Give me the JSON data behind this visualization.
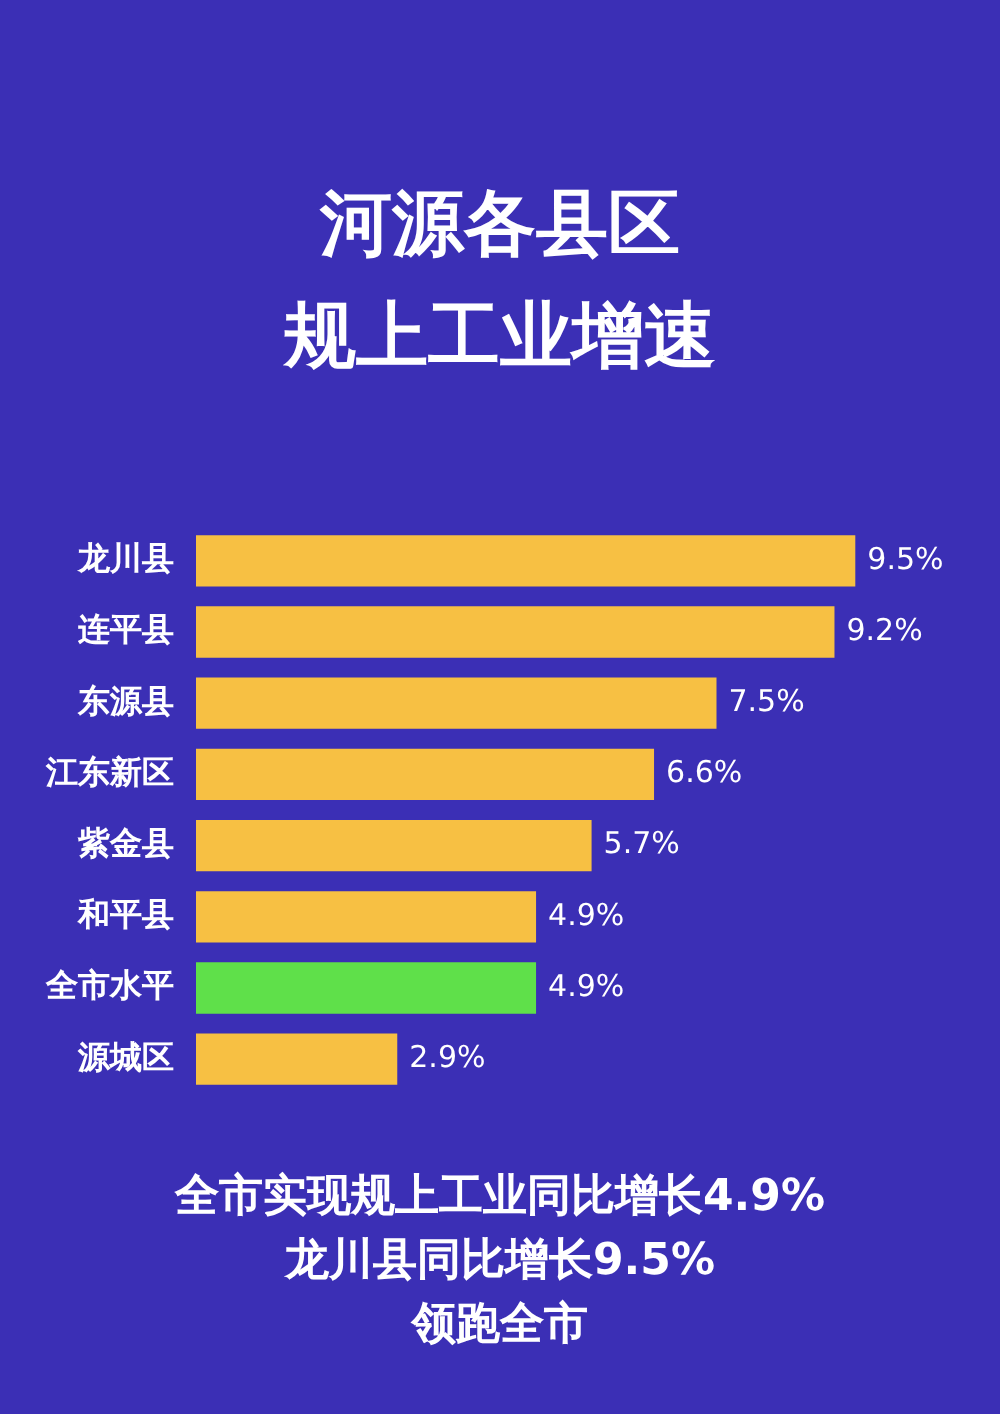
{
  "chart_data": {
    "type": "bar",
    "orientation": "horizontal",
    "title": "河源各县区规上工业增速",
    "categories": [
      "龙川县",
      "连平县",
      "东源县",
      "江东新区",
      "紫金县",
      "和平县",
      "全市水平",
      "源城区"
    ],
    "values": [
      9.5,
      9.2,
      7.5,
      6.6,
      5.7,
      4.9,
      4.9,
      2.9
    ],
    "colors": [
      "#f7c043",
      "#f7c043",
      "#f7c043",
      "#f7c043",
      "#f7c043",
      "#f7c043",
      "#5fe04a",
      "#f7c043"
    ],
    "value_labels": [
      "9.5%",
      "9.2%",
      "7.5%",
      "6.6%",
      "5.7%",
      "4.9%",
      "4.9%",
      "2.9%"
    ],
    "legend": false,
    "annotations": [
      "全市实现规上工业同比增长4.9%",
      "龙川县同比增长9.5%",
      "领跑全市"
    ]
  }
}
